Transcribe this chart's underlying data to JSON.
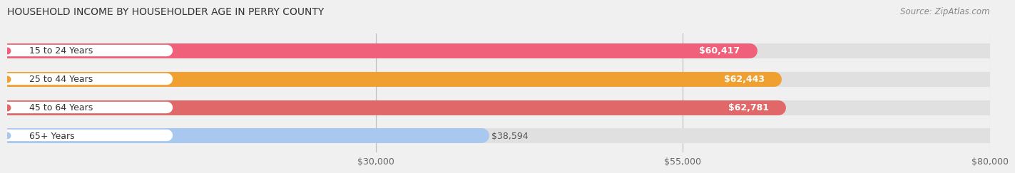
{
  "title": "HOUSEHOLD INCOME BY HOUSEHOLDER AGE IN PERRY COUNTY",
  "source": "Source: ZipAtlas.com",
  "categories": [
    "15 to 24 Years",
    "25 to 44 Years",
    "45 to 64 Years",
    "65+ Years"
  ],
  "values": [
    60417,
    62443,
    62781,
    38594
  ],
  "bar_colors": [
    "#f0607a",
    "#f0a030",
    "#e06868",
    "#a8c8f0"
  ],
  "bar_labels": [
    "$60,417",
    "$62,443",
    "$62,781",
    "$38,594"
  ],
  "xlim": [
    0,
    80000
  ],
  "xticks": [
    30000,
    55000,
    80000
  ],
  "xticklabels": [
    "$30,000",
    "$55,000",
    "$80,000"
  ],
  "background_color": "#f0f0f0",
  "bar_bg_color": "#e0e0e0",
  "title_fontsize": 10,
  "label_fontsize": 9,
  "source_fontsize": 8.5
}
